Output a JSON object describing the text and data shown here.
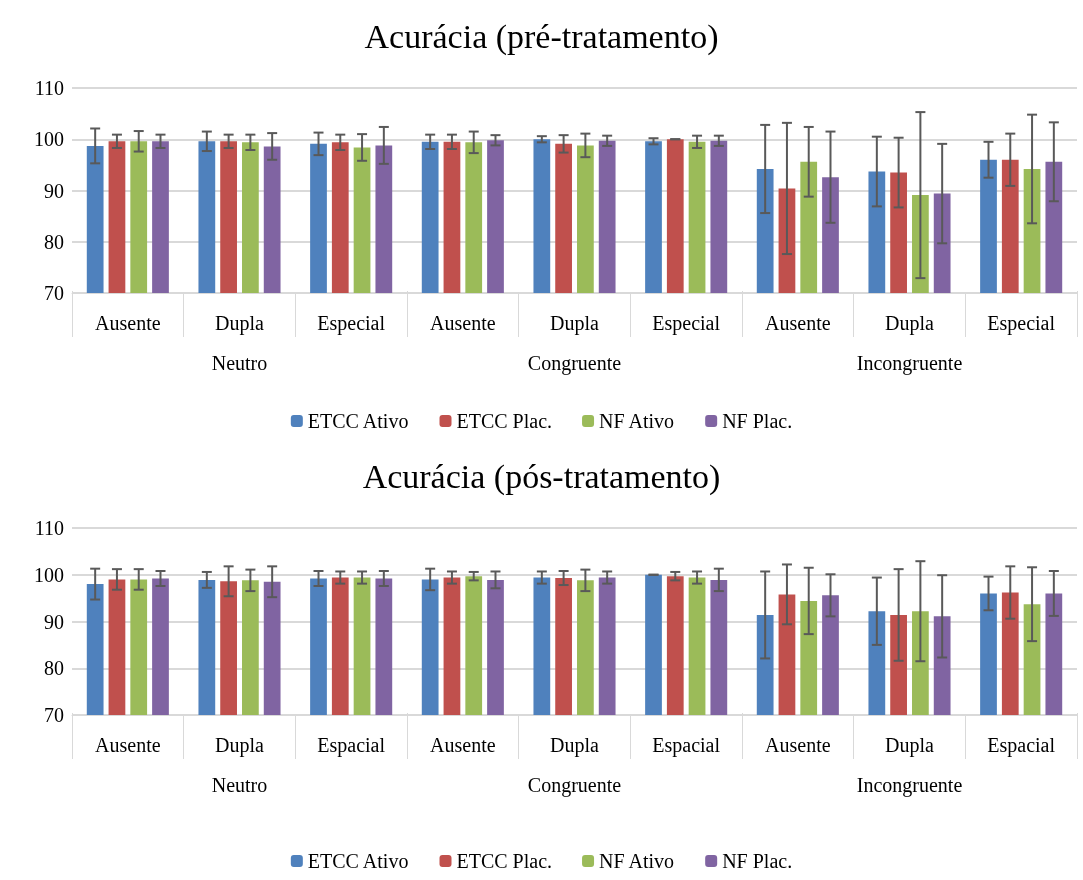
{
  "chart_data": [
    {
      "type": "bar",
      "title": "Acurácia (pré-tratamento)",
      "categories": [
        "Ausente",
        "Dupla",
        "Especial",
        "Ausente",
        "Dupla",
        "Especial",
        "Ausente",
        "Dupla",
        "Especial"
      ],
      "annotations": [
        "Neutro",
        "Congruente",
        "Incongruente"
      ],
      "ylim": [
        70,
        110
      ],
      "yticks": [
        70,
        80,
        90,
        100,
        110
      ],
      "grid": "y",
      "legend": "bottom",
      "series": [
        {
          "name": "ETCC Ativo",
          "color": "#4f81bd",
          "values": [
            98.7,
            99.6,
            99.1,
            99.5,
            100,
            99.6,
            94.2,
            93.7,
            96
          ],
          "errors": [
            3.4,
            1.9,
            2.2,
            1.4,
            0.6,
            0.6,
            8.6,
            6.8,
            3.5
          ]
        },
        {
          "name": "ETCC Plac.",
          "color": "#c0504d",
          "values": [
            99.6,
            99.6,
            99.4,
            99.5,
            99.1,
            100,
            90.4,
            93.5,
            96
          ],
          "errors": [
            1.3,
            1.3,
            1.5,
            1.4,
            1.7,
            0,
            12.8,
            6.8,
            5.1
          ]
        },
        {
          "name": "NF Ativo",
          "color": "#9bbb59",
          "values": [
            99.6,
            99.4,
            98.4,
            99.4,
            98.8,
            99.5,
            95.6,
            89.1,
            94.2
          ],
          "errors": [
            2,
            1.5,
            2.6,
            2.1,
            2.3,
            1.2,
            6.8,
            16.2,
            10.6
          ]
        },
        {
          "name": "NF Plac.",
          "color": "#8064a2",
          "values": [
            99.6,
            98.6,
            98.8,
            99.8,
            99.7,
            99.7,
            92.6,
            89.4,
            95.6
          ],
          "errors": [
            1.3,
            2.6,
            3.6,
            1,
            1,
            1,
            8.9,
            9.7,
            7.7
          ]
        }
      ]
    },
    {
      "type": "bar",
      "title": "Acurácia (pós-tratamento)",
      "categories": [
        "Ausente",
        "Dupla",
        "Espacial",
        "Ausente",
        "Dupla",
        "Espacial",
        "Ausente",
        "Dupla",
        "Espacial"
      ],
      "annotations": [
        "Neutro",
        "Congruente",
        "Incongruente"
      ],
      "ylim": [
        70,
        110
      ],
      "yticks": [
        70,
        80,
        90,
        100,
        110
      ],
      "grid": "y",
      "legend": "bottom",
      "series": [
        {
          "name": "ETCC Ativo",
          "color": "#4f81bd",
          "values": [
            98,
            98.9,
            99.2,
            99,
            99.4,
            100,
            91.4,
            92.2,
            96
          ],
          "errors": [
            3.3,
            1.7,
            1.6,
            2.3,
            1.3,
            0,
            9.3,
            7.2,
            3.6
          ]
        },
        {
          "name": "ETCC Plac.",
          "color": "#c0504d",
          "values": [
            99,
            98.6,
            99.4,
            99.4,
            99.3,
            99.7,
            95.8,
            91.4,
            96.2
          ],
          "errors": [
            2.2,
            3.2,
            1.3,
            1.3,
            1.5,
            0.9,
            6.4,
            9.8,
            5.6
          ]
        },
        {
          "name": "NF Ativo",
          "color": "#9bbb59",
          "values": [
            99,
            98.8,
            99.4,
            99.7,
            98.8,
            99.4,
            94.4,
            92.2,
            93.7
          ],
          "errors": [
            2.2,
            2.3,
            1.3,
            0.9,
            2.3,
            1.3,
            7.1,
            10.7,
            7.9
          ]
        },
        {
          "name": "NF Plac.",
          "color": "#8064a2",
          "values": [
            99.2,
            98.5,
            99.2,
            98.9,
            99.4,
            98.9,
            95.6,
            91.1,
            96
          ],
          "errors": [
            1.6,
            3.3,
            1.6,
            1.8,
            1.3,
            2.4,
            4.5,
            8.8,
            4.8
          ]
        }
      ]
    }
  ]
}
